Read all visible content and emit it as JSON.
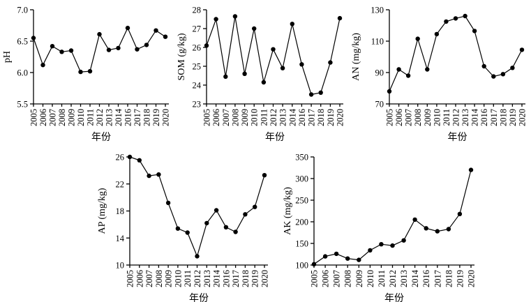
{
  "figure": {
    "background": "#ffffff",
    "line_color": "#000000",
    "marker_style": "filled-circle",
    "note_missing_year": "2015"
  },
  "chart_data": [
    {
      "id": "ph",
      "type": "line",
      "title": "",
      "ylabel": "pH",
      "xlabel": "年份",
      "categories": [
        "2005",
        "2006",
        "2007",
        "2008",
        "2009",
        "2010",
        "2011",
        "2012",
        "2013",
        "2014",
        "2016",
        "2017",
        "2018",
        "2019",
        "2020"
      ],
      "values": [
        6.55,
        6.12,
        6.42,
        6.33,
        6.35,
        6.01,
        6.02,
        6.61,
        6.36,
        6.39,
        6.71,
        6.37,
        6.44,
        6.67,
        6.57
      ],
      "ylim": [
        5.5,
        7.0
      ],
      "yticks": [
        "5.5",
        "6.0",
        "6.5",
        "7.0"
      ],
      "grid": false,
      "legend": "none"
    },
    {
      "id": "som",
      "type": "line",
      "title": "",
      "ylabel": "SOM (g/kg)",
      "xlabel": "年份",
      "categories": [
        "2005",
        "2006",
        "2007",
        "2008",
        "2009",
        "2010",
        "2011",
        "2012",
        "2013",
        "2014",
        "2016",
        "2017",
        "2018",
        "2019",
        "2020"
      ],
      "values": [
        26.1,
        27.5,
        24.45,
        27.65,
        24.6,
        27.0,
        24.15,
        25.9,
        24.9,
        27.25,
        25.1,
        23.5,
        23.6,
        25.2,
        27.55
      ],
      "ylim": [
        23,
        28
      ],
      "yticks": [
        "23",
        "24",
        "25",
        "26",
        "27",
        "28"
      ],
      "grid": false,
      "legend": "none"
    },
    {
      "id": "an",
      "type": "line",
      "title": "",
      "ylabel": "AN (mg/kg)",
      "xlabel": "年份",
      "categories": [
        "2005",
        "2006",
        "2007",
        "2008",
        "2009",
        "2010",
        "2011",
        "2012",
        "2013",
        "2014",
        "2016",
        "2017",
        "2018",
        "2019",
        "2020"
      ],
      "values": [
        78,
        92,
        88,
        111.5,
        92,
        114.5,
        122.5,
        124.5,
        126,
        116.5,
        94,
        87.5,
        89,
        93,
        104.5
      ],
      "ylim": [
        70,
        130
      ],
      "yticks": [
        "70",
        "90",
        "110",
        "130"
      ],
      "grid": false,
      "legend": "none"
    },
    {
      "id": "ap",
      "type": "line",
      "title": "",
      "ylabel": "AP (mg/kg)",
      "xlabel": "年份",
      "categories": [
        "2005",
        "2006",
        "2007",
        "2008",
        "2009",
        "2010",
        "2011",
        "2012",
        "2013",
        "2014",
        "2016",
        "2017",
        "2018",
        "2019",
        "2020"
      ],
      "values": [
        26.0,
        25.5,
        23.2,
        23.4,
        19.2,
        15.4,
        14.8,
        11.3,
        16.2,
        18.1,
        15.6,
        14.9,
        17.5,
        18.6,
        23.3
      ],
      "ylim": [
        10,
        26
      ],
      "yticks": [
        "10",
        "14",
        "18",
        "22",
        "26"
      ],
      "grid": false,
      "legend": "none"
    },
    {
      "id": "ak",
      "type": "line",
      "title": "",
      "ylabel": "AK (mg/kg)",
      "xlabel": "年份",
      "categories": [
        "2005",
        "2006",
        "2007",
        "2008",
        "2009",
        "2010",
        "2011",
        "2012",
        "2013",
        "2014",
        "2016",
        "2017",
        "2018",
        "2019",
        "2020"
      ],
      "values": [
        102,
        120,
        126,
        115,
        112,
        134,
        148,
        145,
        157,
        205,
        185,
        178,
        183,
        218,
        320
      ],
      "ylim": [
        100,
        350
      ],
      "yticks": [
        "100",
        "150",
        "200",
        "250",
        "300",
        "350"
      ],
      "grid": false,
      "legend": "none"
    }
  ]
}
